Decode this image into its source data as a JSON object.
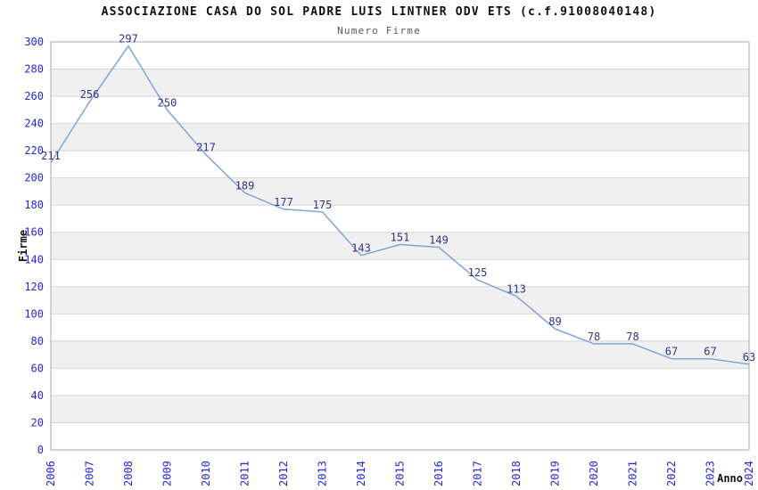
{
  "page": {
    "background": "#ffffff"
  },
  "chart_data": {
    "type": "line",
    "title": "ASSOCIAZIONE CASA DO SOL PADRE LUIS LINTNER ODV ETS (c.f.91008040148)",
    "subtitle": "Numero Firme",
    "xlabel": "Anno",
    "ylabel": "Firme",
    "categories": [
      "2006",
      "2007",
      "2008",
      "2009",
      "2010",
      "2011",
      "2012",
      "2013",
      "2014",
      "2015",
      "2016",
      "2017",
      "2018",
      "2019",
      "2020",
      "2021",
      "2022",
      "2023",
      "2024"
    ],
    "values": [
      211,
      256,
      297,
      250,
      217,
      189,
      177,
      175,
      143,
      151,
      149,
      125,
      113,
      89,
      78,
      78,
      67,
      67,
      63
    ],
    "point_labels": [
      "211",
      "256",
      "297",
      "250",
      "217",
      "189",
      "177",
      "175",
      "143",
      "151",
      "149",
      "125",
      "113",
      "89",
      "78",
      "78",
      "67",
      "67",
      "63"
    ],
    "ylim": [
      0,
      300
    ],
    "ytick_step": 20,
    "grid": true,
    "legend": false,
    "band_fill": "alternating",
    "colors": {
      "line": "#7DA5DC",
      "point_label": "#333380",
      "tick_label": "#2626D9",
      "gridline": "#D6D6D6",
      "band": "#F0F0F0",
      "plot_border": "#A9A9A9",
      "title": "#111111",
      "subtitle": "#585858",
      "axis_title": "#111111",
      "background": "#FFFFFF"
    }
  }
}
